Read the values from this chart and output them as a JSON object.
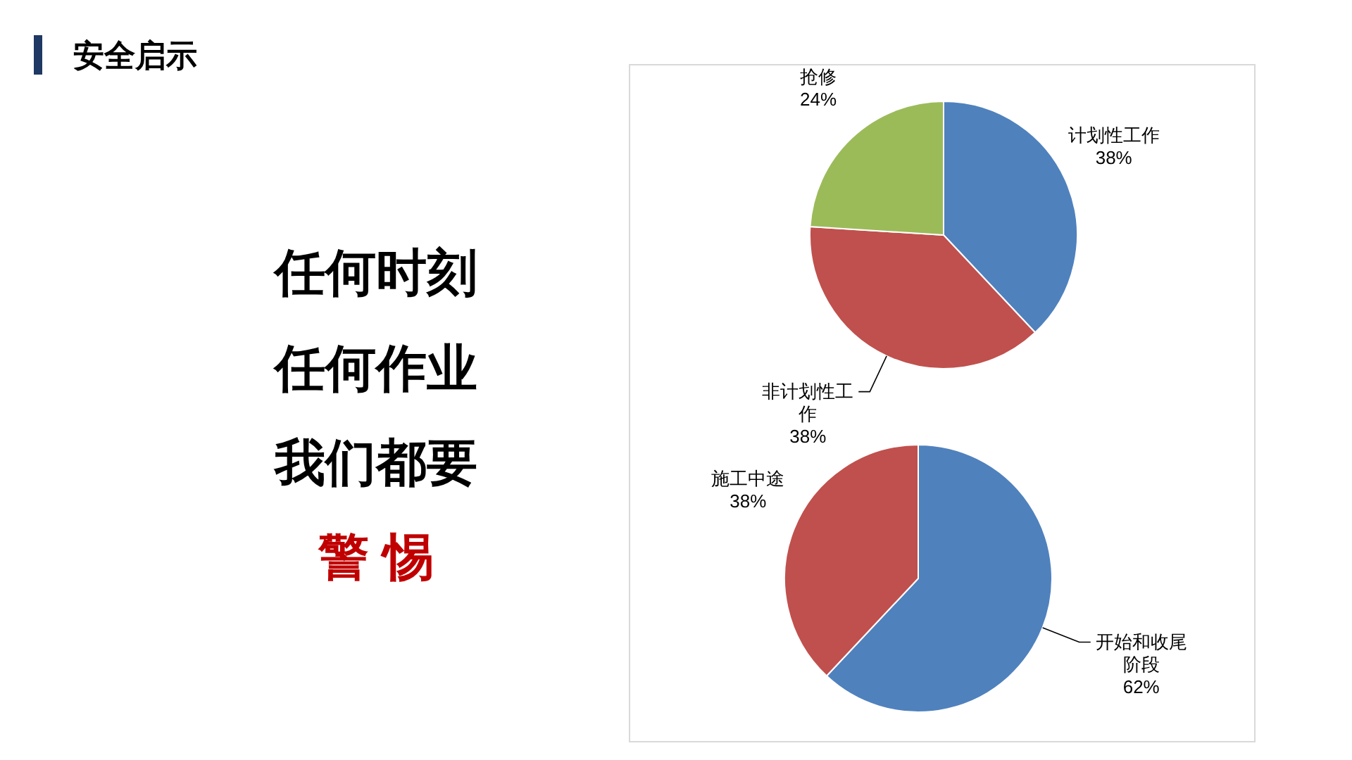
{
  "chart_data": [
    {
      "type": "other",
      "title": "安全启示",
      "annotations": [
        "任何时刻",
        "任何作业",
        "我们都要",
        "警 惕"
      ]
    },
    {
      "type": "pie",
      "categories": [
        "计划性工作",
        "非计划性工作",
        "抢修"
      ],
      "values": [
        38,
        38,
        24
      ],
      "colors": [
        "#4f81bd",
        "#c0504d",
        "#9bbb59"
      ],
      "value_labels": [
        "38%",
        "38%",
        "24%"
      ]
    },
    {
      "type": "pie",
      "categories": [
        "开始和收尾阶段",
        "施工中途"
      ],
      "values": [
        62,
        38
      ],
      "colors": [
        "#4f81bd",
        "#c0504d"
      ],
      "value_labels": [
        "62%",
        "38%"
      ]
    }
  ]
}
